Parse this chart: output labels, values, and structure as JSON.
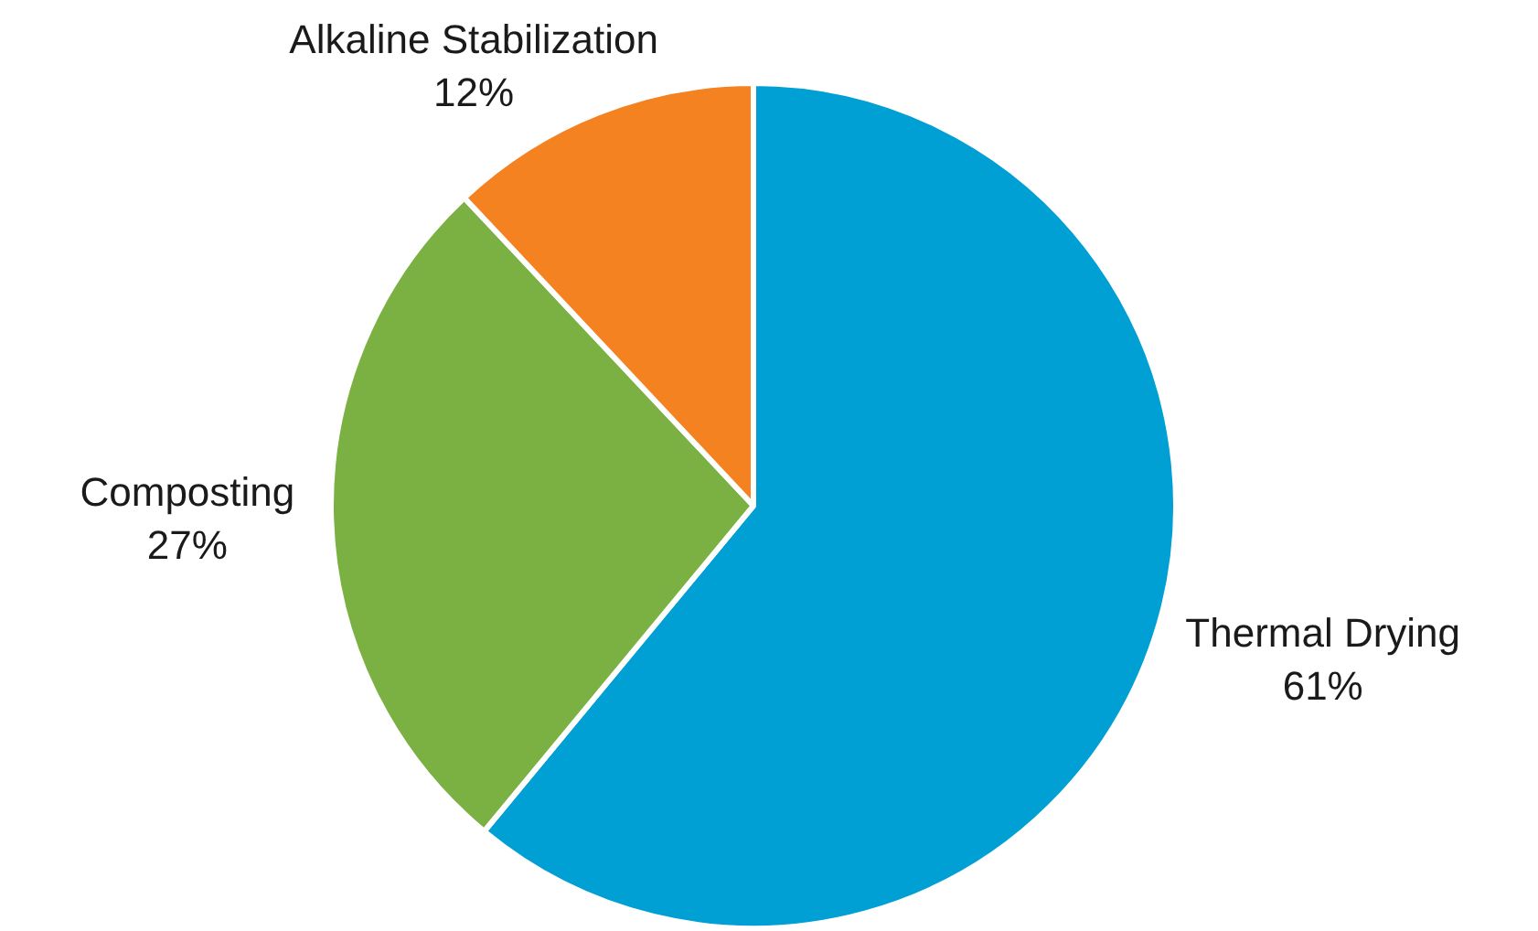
{
  "chart_data": {
    "type": "pie",
    "categories": [
      "Thermal Drying",
      "Composting",
      "Alkaline Stabilization"
    ],
    "values": [
      61,
      27,
      12
    ],
    "colors": [
      "#009fd4",
      "#7ab142",
      "#f58220"
    ],
    "value_labels": [
      "61%",
      "27%",
      "12%"
    ],
    "legend": false
  }
}
